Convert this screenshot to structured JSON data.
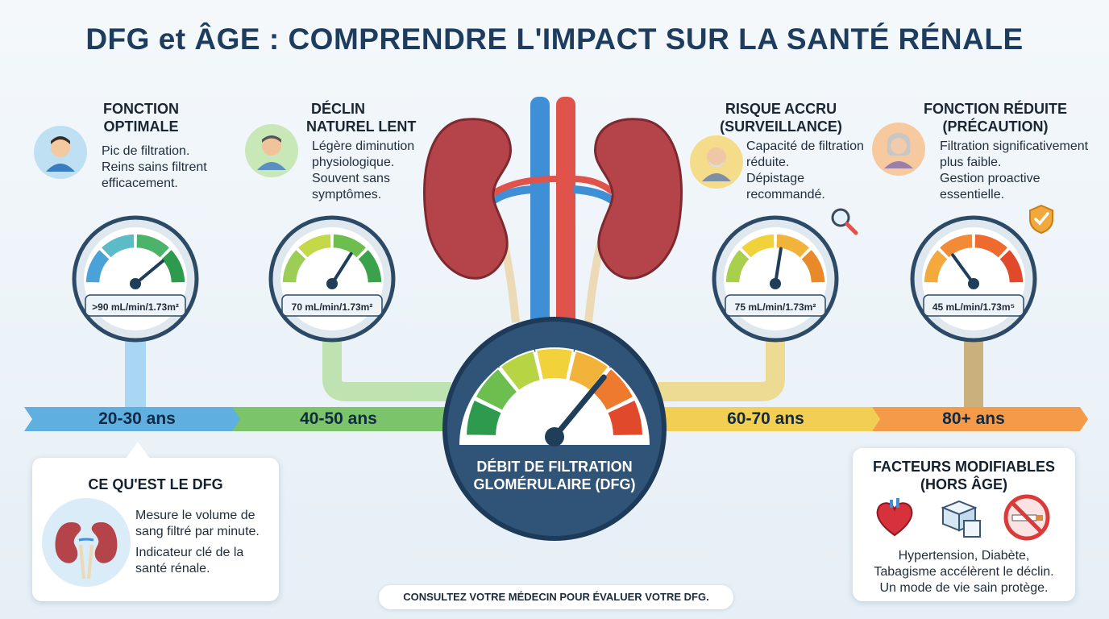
{
  "title": "DFG et ÂGE : COMPRENDRE L'IMPACT SUR LA SANTÉ RÉNALE",
  "stages": [
    {
      "heading": [
        "FONCTION",
        "OPTIMALE"
      ],
      "desc": [
        "Pic de filtration.",
        "Reins sains filtrent",
        "efficacement."
      ],
      "gauge_label": ">90 mL/min/1.73m²",
      "age": "20-30 ans",
      "color": "#4aa3d8",
      "needle_level": 0.78
    },
    {
      "heading": [
        "DÉCLIN",
        "NATUREL LENT"
      ],
      "desc": [
        "Légère diminution",
        "physiologique.",
        "Souvent sans",
        "symptômes."
      ],
      "gauge_label": "70 mL/min/1.73m²",
      "age": "40-50 ans",
      "color": "#5bb85a",
      "needle_level": 0.68
    },
    {
      "heading": [
        "RISQUE ACCRU",
        "(SURVEILLANCE)"
      ],
      "desc": [
        "Capacité de filtration",
        "réduite.",
        "Dépistage",
        "recommandé."
      ],
      "gauge_label": "75 mL/min/1.73m²",
      "age": "60-70 ans",
      "color": "#e8b93a",
      "needle_level": 0.55
    },
    {
      "heading": [
        "FONCTION RÉDUITE",
        "(PRÉCAUTION)"
      ],
      "desc": [
        "Filtration significativement",
        "plus faible.",
        "Gestion proactive",
        "essentielle."
      ],
      "gauge_label": "45 mL/min/1.73m⁵",
      "age": "80+ ans",
      "color": "#f08a3a",
      "needle_level": 0.3
    }
  ],
  "center": {
    "label": [
      "DÉBIT DE FILTRATION",
      "GLOMÉRULAIRE (DFG)"
    ],
    "needle_level": 0.72
  },
  "info_box": {
    "title": "CE QU'EST LE DFG",
    "lines": [
      "Mesure le volume de",
      "sang filtré par minute.",
      "Indicateur clé de la",
      "santé rénale."
    ]
  },
  "factors_box": {
    "title": [
      "FACTEURS MODIFIABLES",
      "(HORS ÂGE)"
    ],
    "icons": [
      "heart-icon",
      "sugar-cubes-icon",
      "no-smoking-icon"
    ],
    "lines": [
      "Hypertension, Diabète,",
      "Tabagisme accélèrent le déclin.",
      "Un mode de vie sain protège."
    ]
  },
  "footer": "CONSULTEZ VOTRE MÉDECIN POUR ÉVALUER VOTRE DFG.",
  "colors": {
    "title": "#1d3c5e",
    "kidney": "#b5444a",
    "artery": "#e0534a",
    "vein": "#3f8fd6"
  }
}
